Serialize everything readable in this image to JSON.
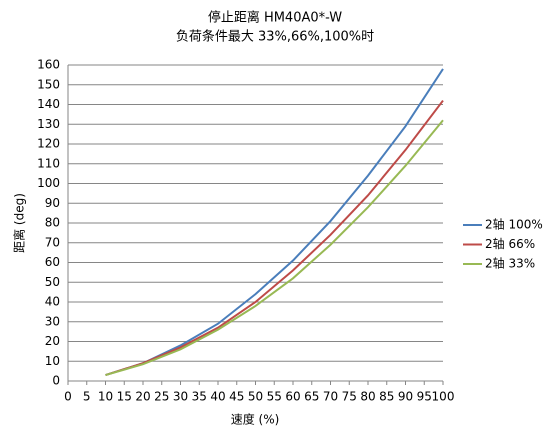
{
  "chart_data": {
    "type": "line",
    "title": "停止距离 HM40A0*-W",
    "subtitle": "负荷条件最大 33%,66%,100%时",
    "x_label": "速度 (%)",
    "y_label": "距离 (deg)",
    "x": [
      10,
      20,
      30,
      40,
      50,
      60,
      70,
      80,
      90,
      100
    ],
    "series": [
      {
        "name": "2轴 100%",
        "color": "#4a7ebb",
        "values": [
          3,
          9,
          18,
          29,
          44,
          61,
          81,
          104,
          129,
          158
        ]
      },
      {
        "name": "2轴 66%",
        "color": "#be4b48",
        "values": [
          3,
          9,
          17,
          27,
          40,
          56,
          74,
          94,
          117,
          142
        ]
      },
      {
        "name": "2轴 33%",
        "color": "#98b954",
        "values": [
          3,
          8.5,
          16,
          26,
          38,
          52,
          69,
          88,
          109,
          132
        ]
      }
    ],
    "xlim": [
      0,
      100
    ],
    "xticks": [
      0,
      5,
      10,
      15,
      20,
      25,
      30,
      35,
      40,
      45,
      50,
      55,
      60,
      65,
      70,
      75,
      80,
      85,
      90,
      95,
      100
    ],
    "ylim": [
      0,
      160
    ],
    "yticks": [
      0,
      10,
      20,
      30,
      40,
      50,
      60,
      70,
      80,
      90,
      100,
      110,
      120,
      130,
      140,
      150,
      160
    ],
    "grid": true,
    "legend": "right"
  }
}
